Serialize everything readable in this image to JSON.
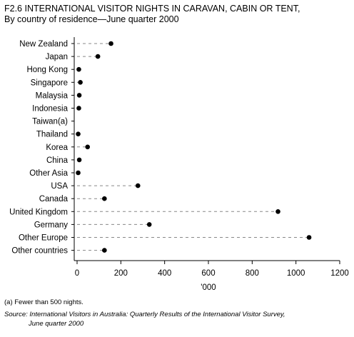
{
  "title": "F2.6 INTERNATIONAL VISITOR NIGHTS IN CARAVAN, CABIN OR TENT,",
  "subtitle": "By country of residence—June quarter 2000",
  "footnote": "(a) Fewer than 500 nights.",
  "source": {
    "label": "Source:",
    "text": "International Visitors in Australia: Quarterly Results of the International Visitor Survey,",
    "text2": "June quarter 2000"
  },
  "chart_data": {
    "type": "scatter",
    "title": "F2.6 INTERNATIONAL VISITOR NIGHTS IN CARAVAN, CABIN OR TENT,",
    "subtitle": "By country of residence—June quarter 2000",
    "xlabel": "'000",
    "ylabel": "",
    "xlim": [
      0,
      1200
    ],
    "xticks": [
      0,
      200,
      400,
      600,
      800,
      1000,
      1200
    ],
    "categories": [
      "New Zealand",
      "Japan",
      "Hong Kong",
      "Singapore",
      "Malaysia",
      "Indonesia",
      "Taiwan(a)",
      "Thailand",
      "Korea",
      "China",
      "Other Asia",
      "USA",
      "Canada",
      "United Kingdom",
      "Germany",
      "Other Europe",
      "Other countries"
    ],
    "values": [
      155,
      95,
      8,
      15,
      10,
      8,
      null,
      5,
      48,
      10,
      5,
      278,
      125,
      918,
      330,
      1060,
      125
    ],
    "grid": false,
    "legend": "none",
    "point_color": "#000000",
    "leader_color": "#888888"
  }
}
